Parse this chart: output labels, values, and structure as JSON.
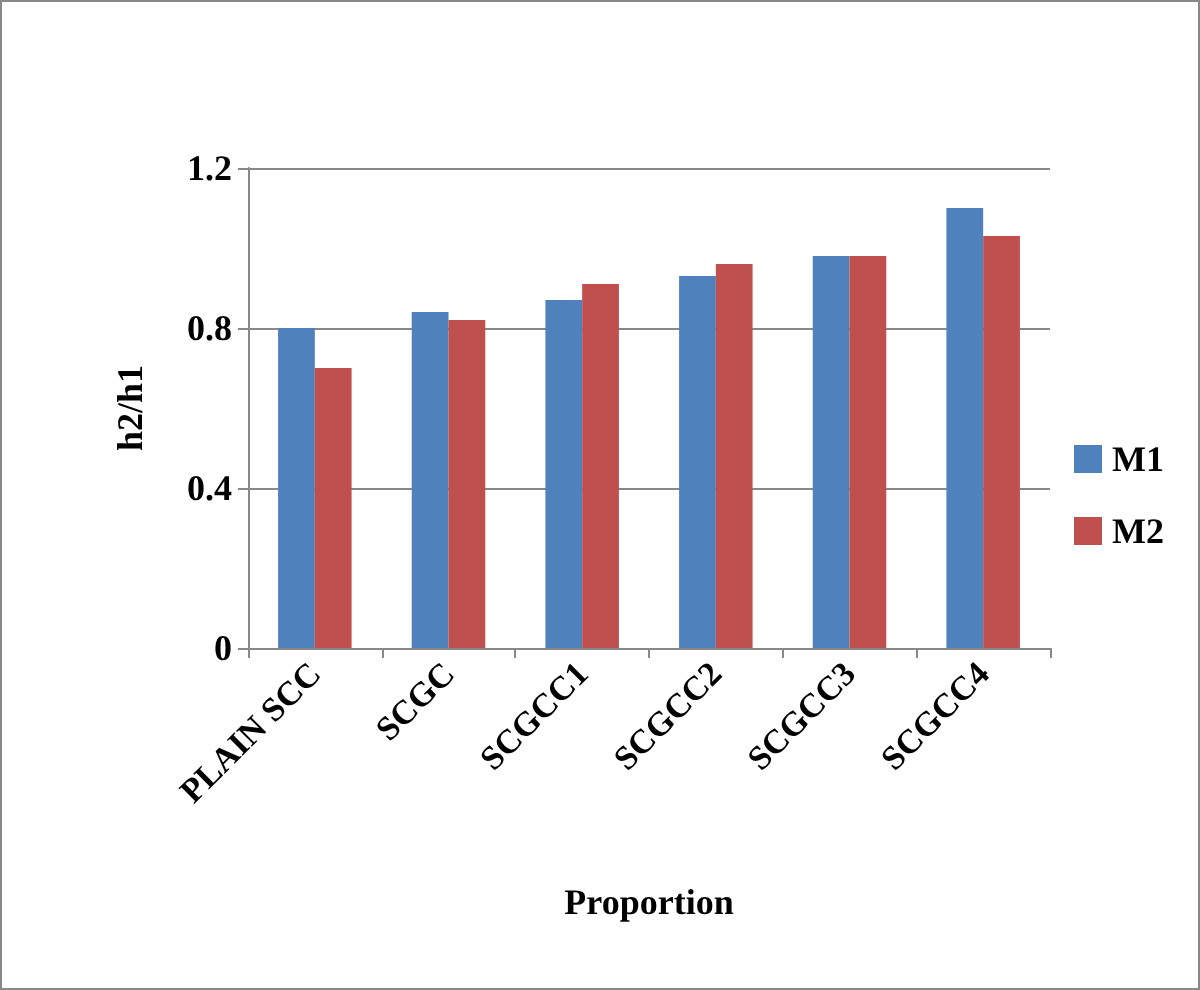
{
  "chart_data": {
    "type": "bar",
    "xlabel": "Proportion",
    "ylabel": "h2/h1",
    "categories": [
      "PLAIN SCC",
      "SCGC",
      "SCGCC1",
      "SCGCC2",
      "SCGCC3",
      "SCGCC4"
    ],
    "series": [
      {
        "name": "M1",
        "color": "#4f81bd",
        "values": [
          0.8,
          0.84,
          0.87,
          0.93,
          0.98,
          1.1
        ]
      },
      {
        "name": "M2",
        "color": "#c0504d",
        "values": [
          0.7,
          0.82,
          0.91,
          0.96,
          0.98,
          1.03
        ]
      }
    ],
    "ylim": [
      0,
      1.2
    ],
    "yticks": [
      0,
      0.4,
      0.8,
      1.2
    ],
    "grid": "y",
    "legend": "right"
  }
}
